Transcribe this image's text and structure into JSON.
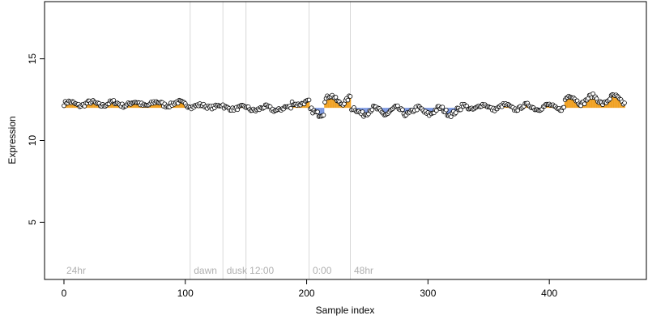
{
  "chart_data": {
    "type": "scatter",
    "xlabel": "Sample index",
    "ylabel": "Expression",
    "xlim": [
      -16,
      480
    ],
    "ylim": [
      1.5,
      18.5
    ],
    "xticks": [
      0,
      100,
      200,
      300,
      400
    ],
    "yticks": [
      5,
      10,
      15
    ],
    "grid": false,
    "baseline": 12.0,
    "colors": {
      "axis": "#000000",
      "point_fill": "#ffffff",
      "point_stroke": "#000000",
      "above_bar": "#f0a020",
      "below_bar": "#7a96e0",
      "divider": "#d8d8d8",
      "condition_label": "#b0b0b0"
    },
    "conditions": [
      {
        "label": "24hr",
        "start": 0
      },
      {
        "label": "dawn",
        "start": 105
      },
      {
        "label": "dusk",
        "start": 132
      },
      {
        "label": "12:00",
        "start": 151
      },
      {
        "label": "0:00",
        "start": 203
      },
      {
        "label": "48hr",
        "start": 237
      }
    ],
    "segments": [
      {
        "x": [
          0,
          104
        ],
        "mean": 12.25,
        "amp": 0.12,
        "noise": 0.12
      },
      {
        "x": [
          105,
          131
        ],
        "mean": 12.1,
        "amp": 0.08,
        "noise": 0.1
      },
      {
        "x": [
          132,
          150
        ],
        "mean": 12.0,
        "amp": 0.08,
        "noise": 0.1
      },
      {
        "x": [
          151,
          187
        ],
        "mean": 11.95,
        "amp": 0.12,
        "noise": 0.12
      },
      {
        "x": [
          188,
          202
        ],
        "mean": 12.3,
        "amp": 0.1,
        "noise": 0.1
      },
      {
        "x": [
          203,
          214
        ],
        "mean": 11.75,
        "amp": 0.15,
        "noise": 0.15
      },
      {
        "x": [
          215,
          236
        ],
        "mean": 12.5,
        "amp": 0.25,
        "noise": 0.12
      },
      {
        "x": [
          237,
          327
        ],
        "mean": 11.8,
        "amp": 0.2,
        "noise": 0.15
      },
      {
        "x": [
          328,
          412
        ],
        "mean": 12.05,
        "amp": 0.15,
        "noise": 0.1
      },
      {
        "x": [
          413,
          462
        ],
        "mean": 12.5,
        "amp": 0.25,
        "noise": 0.12
      }
    ]
  }
}
